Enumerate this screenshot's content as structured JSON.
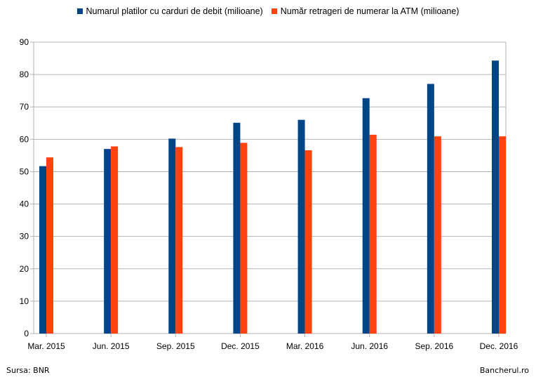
{
  "chart_data": {
    "type": "bar",
    "categories": [
      "Mar. 2015",
      "Jun. 2015",
      "Sep. 2015",
      "Dec. 2015",
      "Mar. 2016",
      "Jun. 2016",
      "Sep. 2016",
      "Dec. 2016"
    ],
    "series": [
      {
        "name": "Numarul platilor cu carduri de debit (milioane)",
        "color": "#004586",
        "values": [
          51.7,
          57.0,
          60.2,
          65.1,
          66.0,
          72.7,
          77.1,
          84.3
        ]
      },
      {
        "name": "Număr retrageri de numerar la ATM (milioane)",
        "color": "#ff420e",
        "values": [
          54.4,
          57.8,
          57.6,
          58.9,
          56.6,
          61.4,
          60.9,
          60.9
        ]
      }
    ],
    "yticks": [
      0,
      10,
      20,
      30,
      40,
      50,
      60,
      70,
      80,
      90
    ],
    "ylim": [
      0,
      90
    ],
    "grid": true,
    "legend": "top-center",
    "title": "",
    "xlabel": "",
    "ylabel": ""
  },
  "footer": {
    "source": "Sursa: BNR",
    "brand": "Bancherul.ro"
  }
}
